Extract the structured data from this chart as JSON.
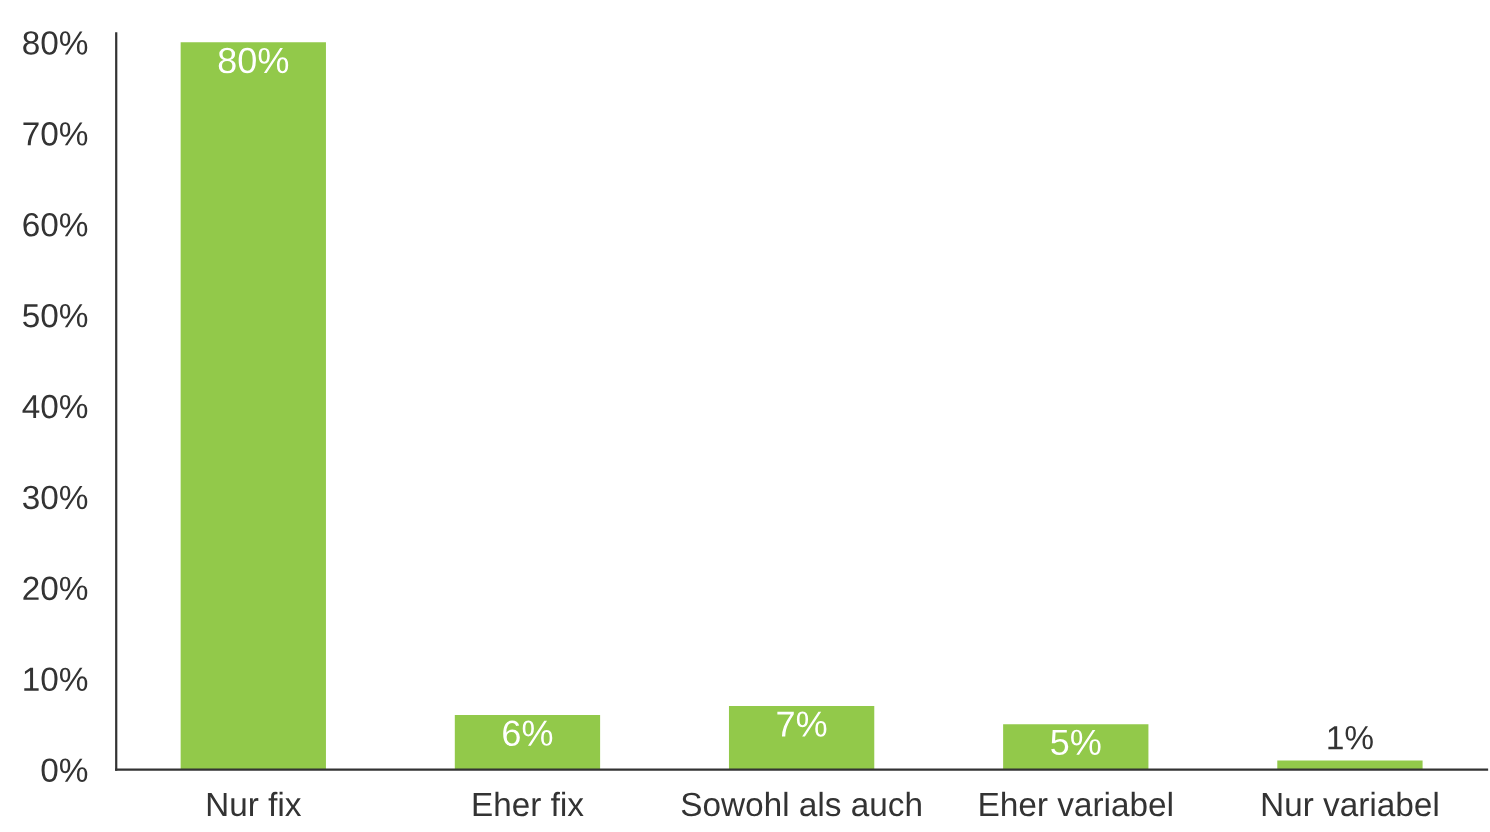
{
  "chart_data": {
    "type": "bar",
    "categories": [
      "Nur fix",
      "Eher fix",
      "Sowohl als auch",
      "Eher variabel",
      "Nur variabel"
    ],
    "values": [
      80,
      6,
      7,
      5,
      1
    ],
    "color": "#92c94a",
    "ylim": [
      0,
      81
    ],
    "yticks": [
      {
        "value": 0,
        "label": "0%"
      },
      {
        "value": 10,
        "label": "10%"
      },
      {
        "value": 20,
        "label": "20%"
      },
      {
        "value": 30,
        "label": "30%"
      },
      {
        "value": 40,
        "label": "40%"
      },
      {
        "value": 50,
        "label": "50%"
      },
      {
        "value": 60,
        "label": "60%"
      },
      {
        "value": 70,
        "label": "70%"
      },
      {
        "value": 80,
        "label": "80%"
      }
    ],
    "value_labels": [
      "80%",
      "6%",
      "7%",
      "5%",
      "1%"
    ],
    "grid": false,
    "legend": false
  }
}
